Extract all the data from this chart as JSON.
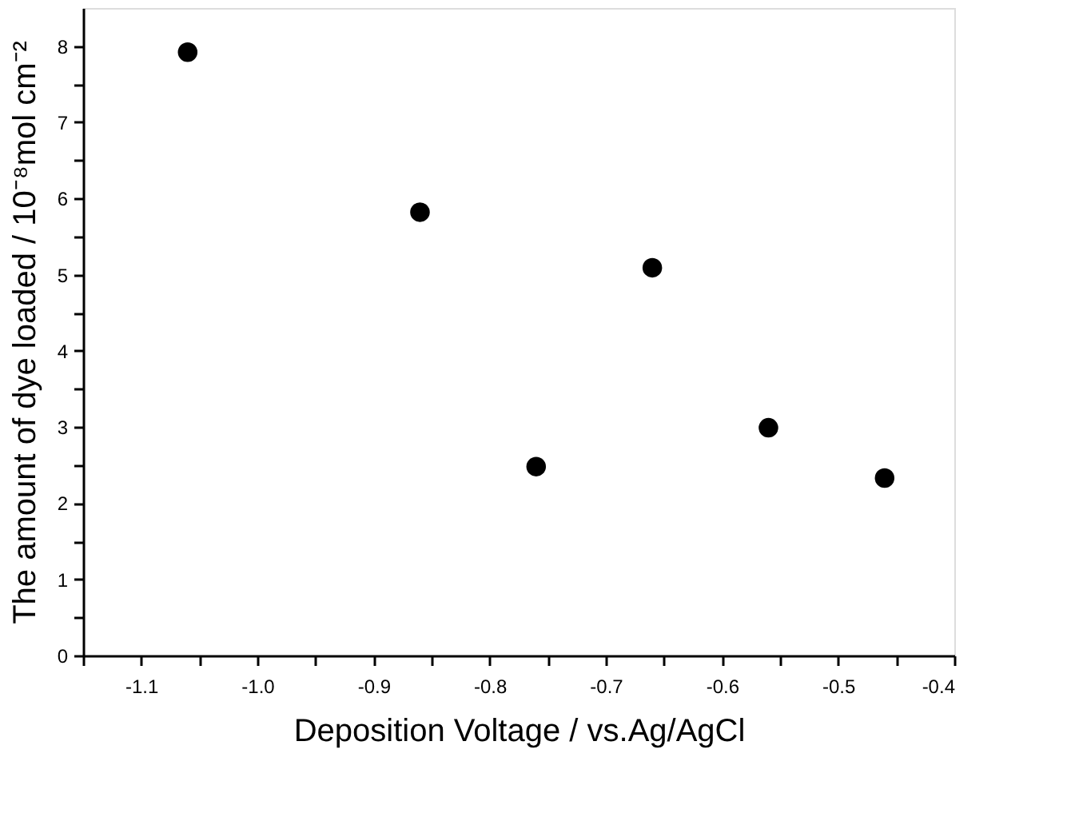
{
  "chart_data": {
    "type": "scatter",
    "xlabel": "Deposition Voltage / vs.Ag/AgCl",
    "ylabel": "The amount of dye loaded / 10⁻⁸mol cm⁻²",
    "x": [
      -1.06,
      -0.86,
      -0.76,
      -0.66,
      -0.56,
      -0.46
    ],
    "series": [
      {
        "color": "#000000",
        "values": [
          7.92,
          5.82,
          2.48,
          5.09,
          2.99,
          2.33
        ]
      }
    ],
    "marker": "circle",
    "xlim": [
      -1.15,
      -0.4
    ],
    "ylim": [
      0,
      8.5
    ],
    "xticks": [
      {
        "value": -1.15,
        "label": null
      },
      {
        "value": -1.1,
        "label": "-1.1"
      },
      {
        "value": -1.05,
        "label": null
      },
      {
        "value": -1.0,
        "label": "-1.0"
      },
      {
        "value": -0.95,
        "label": null
      },
      {
        "value": -0.9,
        "label": "-0.9"
      },
      {
        "value": -0.85,
        "label": null
      },
      {
        "value": -0.8,
        "label": "-0.8"
      },
      {
        "value": -0.75,
        "label": null
      },
      {
        "value": -0.7,
        "label": "-0.7"
      },
      {
        "value": -0.65,
        "label": null
      },
      {
        "value": -0.6,
        "label": "-0.6"
      },
      {
        "value": -0.55,
        "label": null
      },
      {
        "value": -0.5,
        "label": "-0.5"
      },
      {
        "value": -0.45,
        "label": null
      },
      {
        "value": -0.4,
        "label": "-0.4"
      }
    ],
    "yticks": [
      0,
      {
        "value": 0.5,
        "label": null
      },
      1,
      {
        "value": 1.5,
        "label": null
      },
      2,
      {
        "value": 2.5,
        "label": null
      },
      3,
      {
        "value": 3.5,
        "label": null
      },
      4,
      {
        "value": 4.5,
        "label": null
      },
      5,
      {
        "value": 5.5,
        "label": null
      },
      6,
      {
        "value": 6.5,
        "label": null
      },
      7,
      {
        "value": 7.5,
        "label": null
      },
      8
    ],
    "grid": false,
    "legend": false
  }
}
